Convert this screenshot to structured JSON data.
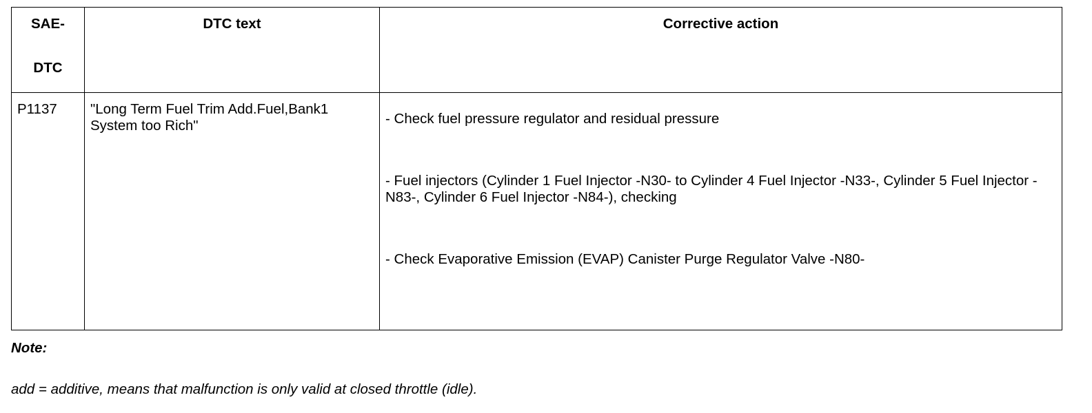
{
  "table": {
    "headers": {
      "sae_line1": "SAE-",
      "sae_line2": "DTC",
      "dtc_text": "DTC text",
      "corrective_action": "Corrective action"
    },
    "rows": [
      {
        "code": "P1137",
        "text": "\"Long Term Fuel Trim Add.Fuel,Bank1 System too Rich\"",
        "actions": [
          "- Check fuel pressure regulator and residual pressure",
          "- Fuel injectors (Cylinder 1 Fuel Injector -N30- to Cylinder 4 Fuel Injector -N33-, Cylinder 5 Fuel Injector -N83-, Cylinder 6 Fuel Injector -N84-), checking",
          "- Check Evaporative Emission (EVAP) Canister Purge Regulator Valve -N80-"
        ]
      }
    ]
  },
  "note": {
    "label": "Note:",
    "text": "add = additive, means that malfunction is only valid at closed throttle (idle)."
  }
}
